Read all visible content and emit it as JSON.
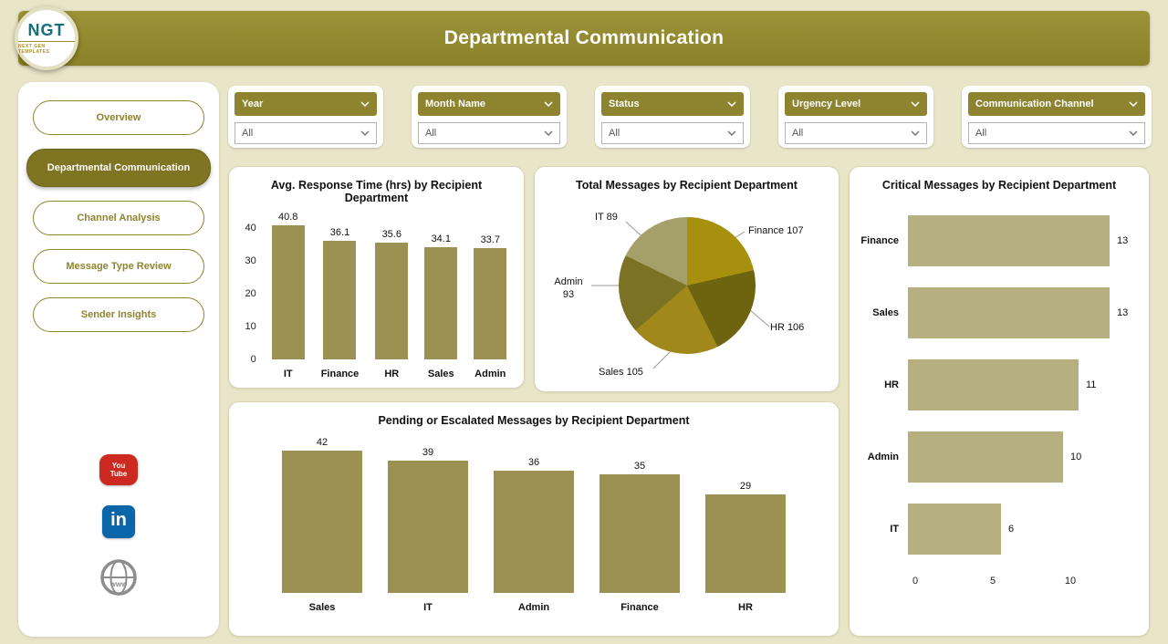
{
  "header": {
    "title": "Departmental Communication",
    "logo_text": "NGT",
    "logo_subtext": "NEXT GEN TEMPLATES"
  },
  "colors": {
    "accent": "#8e8430",
    "header_bar": "#928831",
    "background": "#e9e5c8",
    "bar_olive": "#9a9152",
    "bar_khaki": "#b6af80",
    "youtube_red": "#cc2a20",
    "linkedin_blue": "#0a66a8"
  },
  "sidebar": {
    "items": [
      {
        "label": "Overview",
        "active": false
      },
      {
        "label": "Departmental Communication",
        "active": true
      },
      {
        "label": "Channel Analysis",
        "active": false
      },
      {
        "label": "Message Type Review",
        "active": false
      },
      {
        "label": "Sender Insights",
        "active": false
      }
    ],
    "social": [
      {
        "name": "youtube-icon",
        "text": "You Tube"
      },
      {
        "name": "linkedin-icon",
        "text": "in"
      },
      {
        "name": "globe-icon",
        "text": "www"
      }
    ]
  },
  "filters": [
    {
      "label": "Year",
      "value": "All"
    },
    {
      "label": "Month Name",
      "value": "All"
    },
    {
      "label": "Status",
      "value": "All"
    },
    {
      "label": "Urgency Level",
      "value": "All"
    },
    {
      "label": "Communication Channel",
      "value": "All"
    }
  ],
  "chart_data": [
    {
      "type": "bar",
      "title": "Avg. Response Time (hrs) by Recipient Department",
      "categories": [
        "IT",
        "Finance",
        "HR",
        "Sales",
        "Admin"
      ],
      "values": [
        40.8,
        36.1,
        35.6,
        34.1,
        33.7
      ],
      "xlabel": "",
      "ylabel": "",
      "ylim": [
        0,
        41
      ],
      "yticks": [
        0,
        10,
        20,
        30,
        40
      ],
      "bar_color": "#9a9152",
      "grid": false
    },
    {
      "type": "pie",
      "title": "Total Messages by Recipient Department",
      "categories": [
        "Finance",
        "HR",
        "Sales",
        "Admin",
        "IT"
      ],
      "values": [
        107,
        106,
        105,
        93,
        89
      ],
      "point_labels": [
        "Finance 107",
        "HR 106",
        "Sales 105",
        "Admin 93",
        "IT 89"
      ],
      "colors": [
        "#a8900f",
        "#6e6410",
        "#a1881a",
        "#7c7223",
        "#a59f6a"
      ],
      "start_angle_deg": 0,
      "direction": "clockwise"
    },
    {
      "type": "hbar",
      "title": "Critical Messages by Recipient Department",
      "categories": [
        "Finance",
        "Sales",
        "HR",
        "Admin",
        "IT"
      ],
      "values": [
        13,
        13,
        11,
        10,
        6
      ],
      "xlabel": "",
      "ylabel": "",
      "xlim": [
        0,
        14
      ],
      "xticks": [
        0,
        5,
        10
      ],
      "bar_color": "#b6af80",
      "grid": false
    },
    {
      "type": "bar",
      "title": "Pending or Escalated Messages by Recipient Department",
      "categories": [
        "Sales",
        "IT",
        "Admin",
        "Finance",
        "HR"
      ],
      "values": [
        42,
        39,
        36,
        35,
        29
      ],
      "xlabel": "",
      "ylabel": "",
      "ylim": [
        0,
        43
      ],
      "yticks": [],
      "bar_color": "#9a9152",
      "grid": false
    }
  ]
}
